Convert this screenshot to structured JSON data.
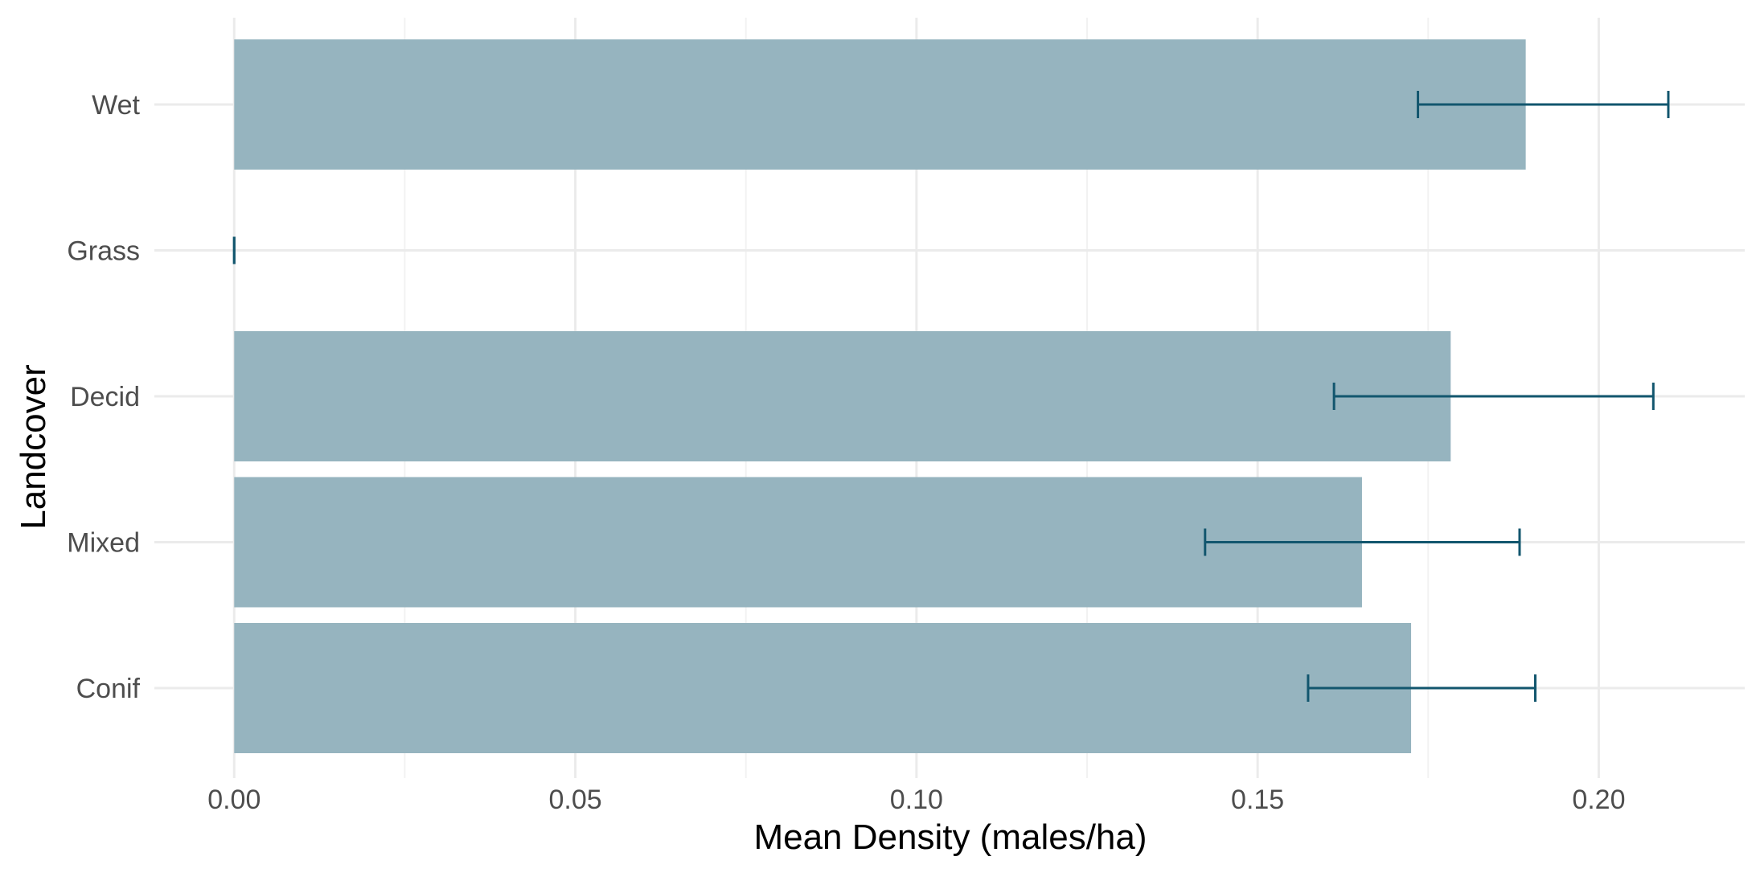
{
  "chart_data": {
    "type": "bar",
    "orientation": "horizontal",
    "xlabel": "Mean Density (males/ha)",
    "ylabel": "Landcover",
    "categories": [
      "Conif",
      "Mixed",
      "Decid",
      "Grass",
      "Wet"
    ],
    "values": [
      0.1725,
      0.1653,
      0.1783,
      0.0,
      0.1893
    ],
    "error_low": [
      0.1574,
      0.1423,
      0.1612,
      0.0,
      0.1735
    ],
    "error_high": [
      0.1907,
      0.1884,
      0.208,
      0.0,
      0.2102
    ],
    "xlim": [
      -0.0117,
      0.2214
    ],
    "xticks": [
      0.0,
      0.05,
      0.1,
      0.15,
      0.2
    ],
    "xtick_labels": [
      "0.00",
      "0.05",
      "0.10",
      "0.15",
      "0.20"
    ],
    "grid": true,
    "legend": "none",
    "colors": {
      "bar": "#96b4bf",
      "errorbar": "#12566e",
      "grid_major": "#ebebeb",
      "grid_minor": "#f2f2f2"
    }
  }
}
